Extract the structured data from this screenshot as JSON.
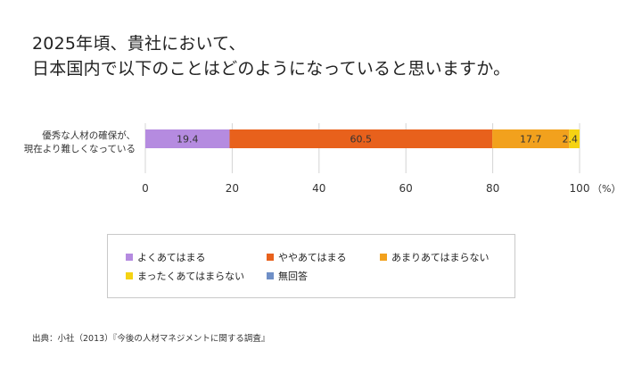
{
  "title_lines": [
    "2025年頃、貴社において、",
    "日本国内で以下のことはどのようになっていると思いますか。"
  ],
  "category_label_lines": [
    "優秀な人材の確保が、",
    "現在より難しくなっている"
  ],
  "source": "出典：小社（2013）『今後の人材マネジメントに関する調査』",
  "chart_data": {
    "type": "bar",
    "orientation": "horizontal",
    "stacked": true,
    "categories": [
      "優秀な人材の確保が、現在より難しくなっている"
    ],
    "series": [
      {
        "name": "よくあてはまる",
        "values": [
          19.4
        ],
        "label": "19.4",
        "color": "#b58be0"
      },
      {
        "name": "ややあてはまる",
        "values": [
          60.5
        ],
        "label": "60.5",
        "color": "#e8611c"
      },
      {
        "name": "あまりあてはまらない",
        "values": [
          17.7
        ],
        "label": "17.7",
        "color": "#f2a11d"
      },
      {
        "name": "まったくあてはまらない",
        "values": [
          2.4
        ],
        "label": "2.4",
        "color": "#f5d313"
      },
      {
        "name": "無回答",
        "values": [
          0
        ],
        "label": "",
        "color": "#6f8fc7"
      }
    ],
    "xlim": [
      0,
      100
    ],
    "xticks": [
      "0",
      "20",
      "40",
      "60",
      "80",
      "100"
    ],
    "xunit": "（%）",
    "grid": true,
    "legend_position": "bottom"
  }
}
